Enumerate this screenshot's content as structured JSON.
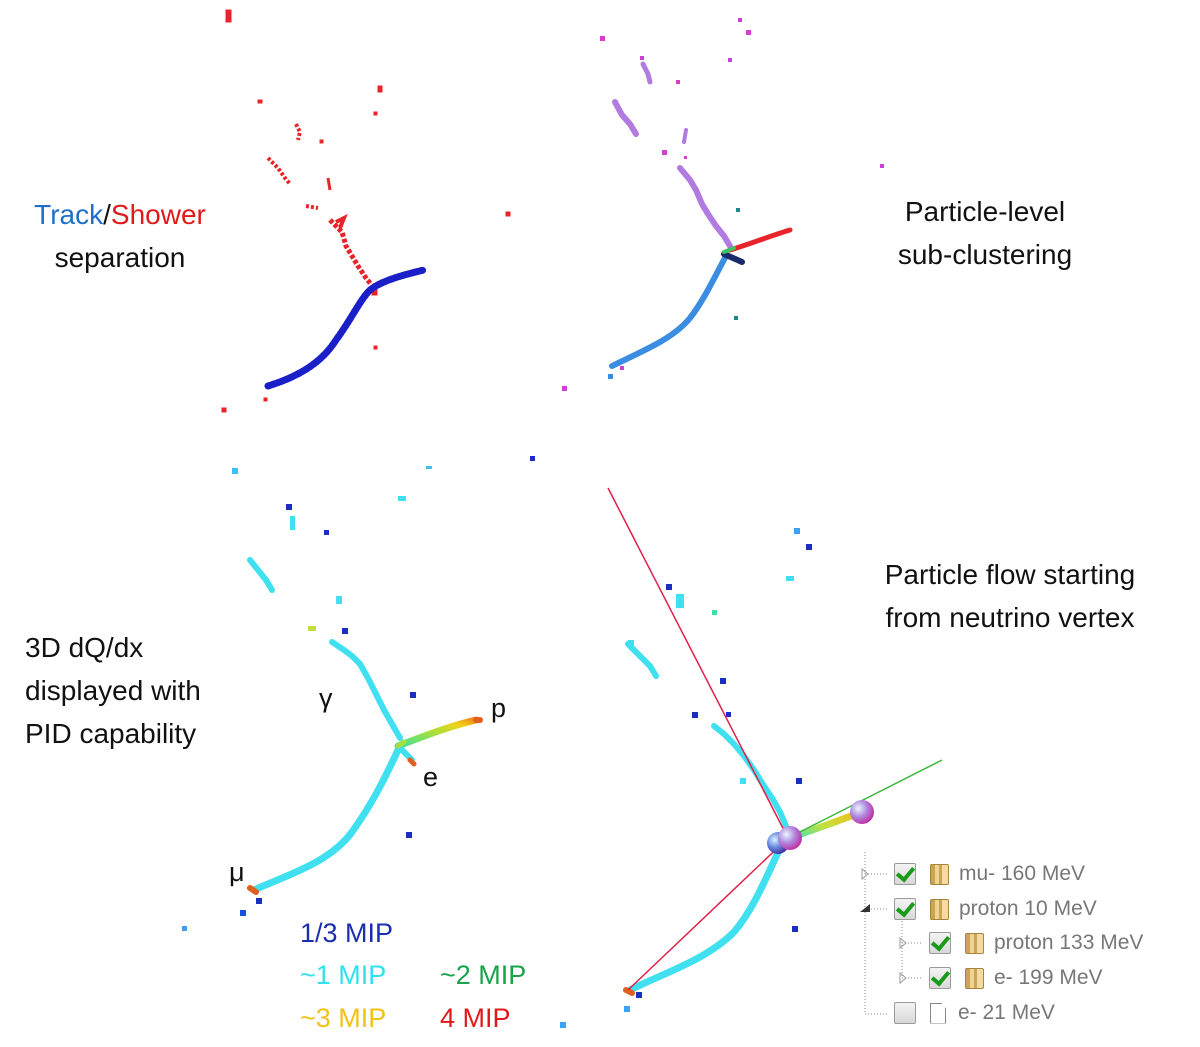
{
  "labels": {
    "track_word": "Track",
    "slash": "/",
    "shower_word": "Shower",
    "separation": "separation",
    "particle_level": "Particle-level",
    "sub_clustering": "sub-clustering",
    "flow_line1": "Particle flow starting",
    "flow_line2": "from neutrino vertex",
    "dqdx_line1": "3D dQ/dx",
    "dqdx_line2": "displayed with",
    "dqdx_line3": "PID capability"
  },
  "pid_labels": {
    "gamma": "γ",
    "proton": "p",
    "electron": "e",
    "muon": "μ"
  },
  "mip_legend": [
    {
      "text": "1/3 MIP",
      "color": "#1a2fb0"
    },
    {
      "text": "~1 MIP",
      "color": "#33e0f0"
    },
    {
      "text": "~2 MIP",
      "color": "#1aa34a"
    },
    {
      "text": "~3 MIP",
      "color": "#f2c21a"
    },
    {
      "text": "4 MIP",
      "color": "#e01a1a"
    }
  ],
  "particle_tree": [
    {
      "label": "mu- 160 MeV",
      "checked": true,
      "icon": "folder-icon"
    },
    {
      "label": "proton 10 MeV",
      "checked": true,
      "icon": "folder-icon"
    },
    {
      "label": "proton 133 MeV",
      "checked": true,
      "icon": "folder-icon"
    },
    {
      "label": "e- 199 MeV",
      "checked": true,
      "icon": "folder-icon"
    },
    {
      "label": "e- 21 MeV",
      "checked": false,
      "icon": "file-icon"
    }
  ],
  "colors": {
    "track": "#1f6fc9",
    "shower": "#e01a1a",
    "track_blue": "#1a1fc8",
    "shower_red": "#e8242a",
    "cluster_blue": "#3a8de0",
    "cluster_violet": "#b27be0",
    "cluster_magenta": "#d040d0",
    "cluster_navy": "#1a2a6a",
    "cluster_teal": "#1a8a8a",
    "mip_cyan": "#40e0f0",
    "mip_blue": "#1a2fc0",
    "mip_green": "#1aa34a",
    "mip_yellow": "#f2d21a",
    "mip_red": "#e01a1a",
    "flow_red": "#e0204a",
    "flow_green": "#3ab83a"
  }
}
